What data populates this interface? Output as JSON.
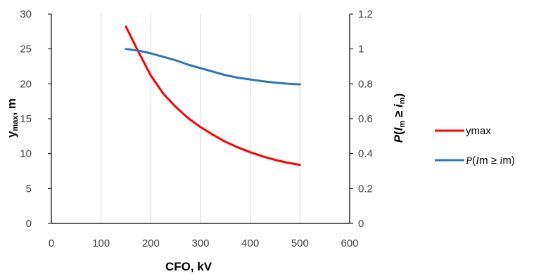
{
  "chart_data": {
    "type": "line",
    "x": [
      150,
      175,
      200,
      225,
      250,
      275,
      300,
      325,
      350,
      375,
      400,
      425,
      450,
      475,
      500
    ],
    "xlabel": "CFO, kV",
    "xlim": [
      0,
      600
    ],
    "xticks": [
      "0",
      "100",
      "200",
      "300",
      "400",
      "500",
      "600"
    ],
    "ylabel_left": {
      "main": "y",
      "sub": "max",
      "suffix": ", m"
    },
    "ylim_left": [
      0,
      30
    ],
    "yticks_left": [
      "0",
      "5",
      "10",
      "15",
      "20",
      "25",
      "30"
    ],
    "ylabel_right": {
      "p": "P",
      "open": "(",
      "var1": "I",
      "sub1": "m",
      "ge": " ≥ ",
      "var2": "i",
      "sub2": "m",
      "close": ")"
    },
    "ylim_right": [
      0,
      1.2
    ],
    "yticks_right": [
      "0",
      "0.2",
      "0.4",
      "0.6",
      "0.8",
      "1",
      "1.2"
    ],
    "grid": "vertical",
    "legend_position": "right",
    "series": [
      {
        "name": "ymax",
        "axis": "left",
        "color": "#ff0000",
        "values": [
          28.2,
          24.6,
          21.2,
          18.6,
          16.7,
          15.1,
          13.8,
          12.7,
          11.7,
          10.9,
          10.2,
          9.6,
          9.1,
          8.7,
          8.4
        ]
      },
      {
        "name": "P(Im ≥ im)",
        "legend_parts": {
          "p": "P",
          "open": "(",
          "var1": "I",
          "mid": "m ≥ ",
          "var2": "i",
          "end": "m)"
        },
        "axis": "right",
        "color": "#2e75b6",
        "values": [
          1.0,
          0.99,
          0.975,
          0.955,
          0.935,
          0.91,
          0.89,
          0.87,
          0.85,
          0.835,
          0.825,
          0.815,
          0.807,
          0.801,
          0.797
        ]
      }
    ]
  }
}
